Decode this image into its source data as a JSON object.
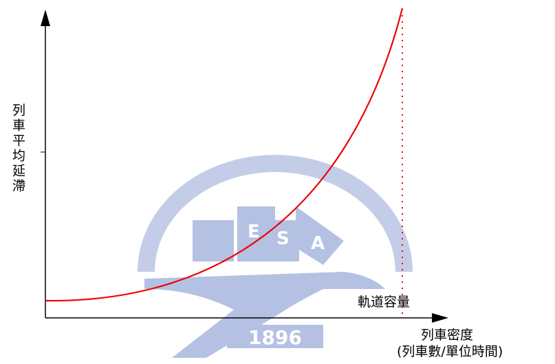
{
  "y_axis_label": "列車平均延滯",
  "x_axis_label": [
    "列車密度",
    "(列車數/單位時間)"
  ],
  "capacity_label": "軌道容量",
  "watermark": {
    "letters": [
      "E",
      "S",
      "A"
    ],
    "year": "1896"
  }
}
